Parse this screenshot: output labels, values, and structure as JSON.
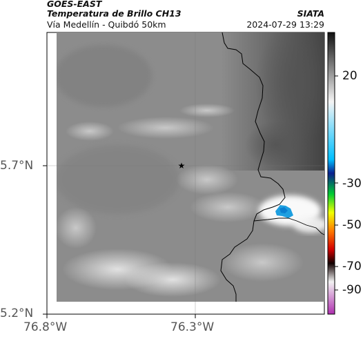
{
  "header": {
    "satellite": "GOES-EAST",
    "product": "Temperatura de Brillo CH13",
    "region": "Vía Medellín - Quibdó 50km",
    "organization": "SIATA",
    "timestamp": "2024-07-29 13:29"
  },
  "axes": {
    "lat_ticks": [
      "5.7°N",
      "5.2°N"
    ],
    "lon_ticks": [
      "76.8°W",
      "76.3°W"
    ]
  },
  "colorbar": {
    "tick_labels": [
      "20",
      "-30",
      "-50",
      "-70",
      "-90"
    ],
    "stops": [
      {
        "value": 30,
        "color": "#111111"
      },
      {
        "value": 0,
        "color": "#f4f4f4"
      },
      {
        "value": -25,
        "color": "#00bfff"
      },
      {
        "value": -31,
        "color": "#0a1f8f"
      },
      {
        "value": -40,
        "color": "#00cc33"
      },
      {
        "value": -48,
        "color": "#f0ff00"
      },
      {
        "value": -56,
        "color": "#ff7a00"
      },
      {
        "value": -64,
        "color": "#d40000"
      },
      {
        "value": -70,
        "color": "#110000"
      },
      {
        "value": -78,
        "color": "#f2f2f2"
      },
      {
        "value": -92,
        "color": "#b030b0"
      }
    ]
  },
  "marker": {
    "icon": "star-icon"
  },
  "colors": {
    "cold_cloud": "#1e9fe0",
    "border": "#000000"
  }
}
